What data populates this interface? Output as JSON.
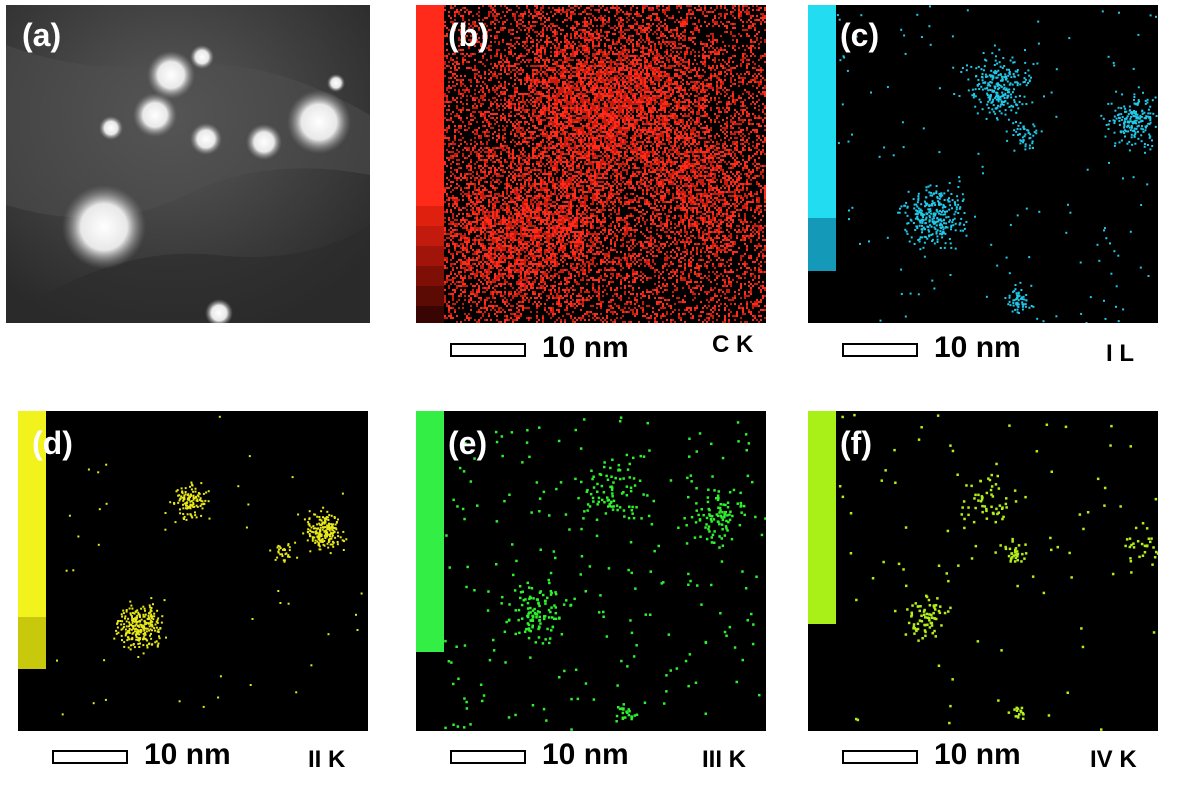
{
  "panels": [
    {
      "id": "a",
      "label": "(a)",
      "kind": "haadf"
    },
    {
      "id": "b",
      "label": "(b)",
      "kind": "map",
      "color": "#ff2a1a",
      "element": "C K",
      "scalebar": "10 nm"
    },
    {
      "id": "c",
      "label": "(c)",
      "kind": "map",
      "color": "#22c8e8",
      "element": "I L",
      "scalebar": "10 nm"
    },
    {
      "id": "d",
      "label": "(d)",
      "kind": "map",
      "color": "#e8e81a",
      "element": "II K",
      "scalebar": "10 nm"
    },
    {
      "id": "e",
      "label": "(e)",
      "kind": "map",
      "color": "#2ef02e",
      "element": "III K",
      "scalebar": "10 nm"
    },
    {
      "id": "f",
      "label": "(f)",
      "kind": "map",
      "color": "#b2ee1a",
      "element": "IV K",
      "scalebar": "10 nm"
    }
  ],
  "colors": {
    "b_bar": [
      "#ff2a1a",
      "#ff2a1a",
      "#e0200f",
      "#c21a0c",
      "#a01409",
      "#7d0f07",
      "#5c0a04",
      "#380502"
    ],
    "c_bar": [
      "#22ddf2",
      "#1499b8"
    ],
    "d_bar": [
      "#f2f21c",
      "#c8c80c"
    ],
    "e_bar": [
      "#33ee44"
    ],
    "f_bar": [
      "#a8f018"
    ]
  }
}
